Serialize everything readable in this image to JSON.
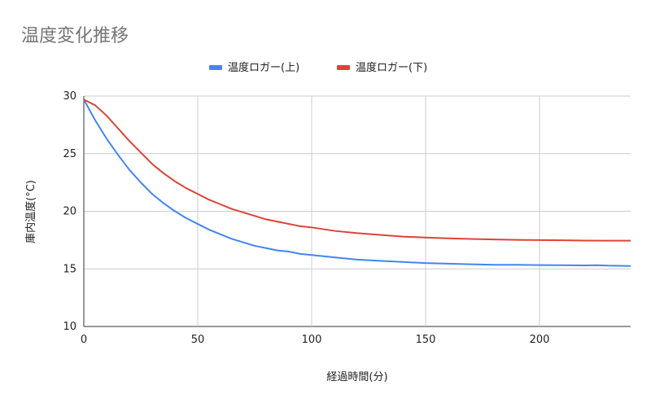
{
  "chart_data": {
    "type": "line",
    "title": "温度変化推移",
    "xlabel": "経過時間(分)",
    "ylabel": "庫内温度(°C)",
    "xlim": [
      0,
      240
    ],
    "ylim": [
      10,
      30
    ],
    "xticks": [
      0,
      50,
      100,
      150,
      200
    ],
    "yticks": [
      10,
      15,
      20,
      25,
      30
    ],
    "grid": true,
    "legend": "top-center",
    "series": [
      {
        "name": "温度ロガー(上)",
        "color": "#4285f4",
        "points": [
          [
            0,
            29.7
          ],
          [
            5,
            27.9
          ],
          [
            10,
            26.3
          ],
          [
            15,
            24.9
          ],
          [
            20,
            23.6
          ],
          [
            25,
            22.5
          ],
          [
            30,
            21.5
          ],
          [
            35,
            20.7
          ],
          [
            40,
            20.0
          ],
          [
            45,
            19.4
          ],
          [
            50,
            18.9
          ],
          [
            55,
            18.4
          ],
          [
            60,
            18.0
          ],
          [
            65,
            17.6
          ],
          [
            70,
            17.3
          ],
          [
            75,
            17.0
          ],
          [
            80,
            16.8
          ],
          [
            85,
            16.6
          ],
          [
            90,
            16.5
          ],
          [
            95,
            16.3
          ],
          [
            100,
            16.2
          ],
          [
            110,
            16.0
          ],
          [
            120,
            15.8
          ],
          [
            130,
            15.7
          ],
          [
            140,
            15.6
          ],
          [
            150,
            15.5
          ],
          [
            160,
            15.45
          ],
          [
            170,
            15.4
          ],
          [
            180,
            15.35
          ],
          [
            190,
            15.35
          ],
          [
            200,
            15.33
          ],
          [
            210,
            15.32
          ],
          [
            220,
            15.3
          ],
          [
            225,
            15.32
          ],
          [
            230,
            15.28
          ],
          [
            240,
            15.25
          ]
        ]
      },
      {
        "name": "温度ロガー(下)",
        "color": "#db4437",
        "points": [
          [
            0,
            29.7
          ],
          [
            5,
            29.2
          ],
          [
            10,
            28.3
          ],
          [
            15,
            27.2
          ],
          [
            20,
            26.1
          ],
          [
            25,
            25.1
          ],
          [
            30,
            24.1
          ],
          [
            35,
            23.3
          ],
          [
            40,
            22.6
          ],
          [
            45,
            22.0
          ],
          [
            50,
            21.5
          ],
          [
            55,
            21.0
          ],
          [
            60,
            20.6
          ],
          [
            65,
            20.2
          ],
          [
            70,
            19.9
          ],
          [
            75,
            19.6
          ],
          [
            80,
            19.3
          ],
          [
            85,
            19.1
          ],
          [
            90,
            18.9
          ],
          [
            95,
            18.7
          ],
          [
            100,
            18.6
          ],
          [
            110,
            18.3
          ],
          [
            120,
            18.1
          ],
          [
            130,
            17.95
          ],
          [
            140,
            17.8
          ],
          [
            150,
            17.72
          ],
          [
            160,
            17.65
          ],
          [
            170,
            17.6
          ],
          [
            180,
            17.55
          ],
          [
            190,
            17.52
          ],
          [
            200,
            17.5
          ],
          [
            210,
            17.48
          ],
          [
            220,
            17.46
          ],
          [
            230,
            17.45
          ],
          [
            240,
            17.45
          ]
        ]
      }
    ]
  }
}
